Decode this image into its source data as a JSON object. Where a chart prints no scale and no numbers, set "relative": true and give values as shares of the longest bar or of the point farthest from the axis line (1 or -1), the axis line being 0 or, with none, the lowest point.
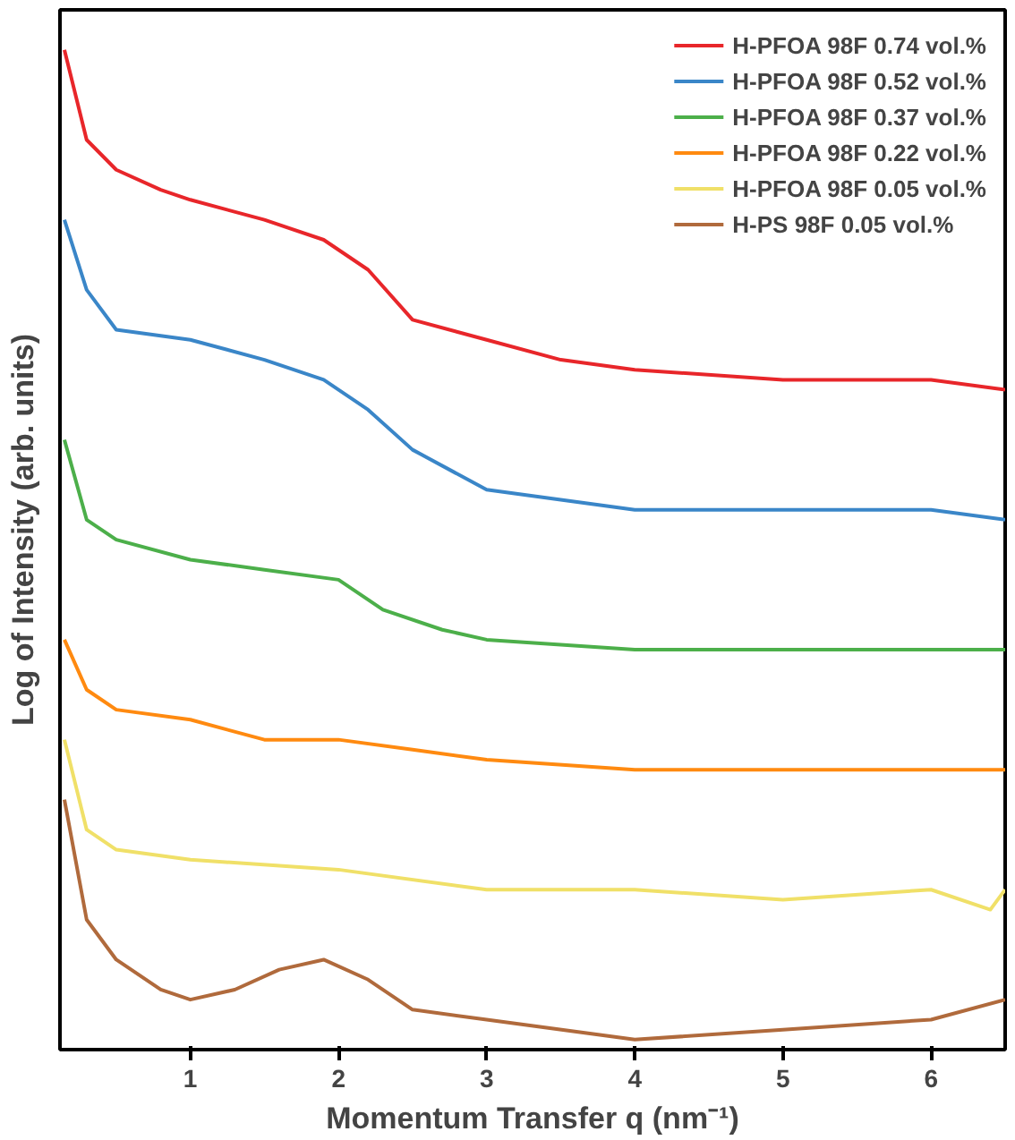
{
  "chart_data": {
    "type": "line",
    "relative": true,
    "xlabel": "Momentum Transfer q (nm⁻¹)",
    "ylabel": "Log of Intensity (arb. units)",
    "xlim": [
      0.12,
      6.5
    ],
    "xticks": [
      1,
      2,
      3,
      4,
      5,
      6
    ],
    "grid": false,
    "legend": "top right",
    "marker": "none",
    "line_style": "solid",
    "series": [
      {
        "name": "H-PFOA 98F 0.74 vol.%",
        "color": "#e8262a",
        "x": [
          0.15,
          0.3,
          0.5,
          0.8,
          1,
          1.5,
          1.9,
          2.2,
          2.5,
          3,
          3.5,
          4,
          5,
          6,
          6.5
        ],
        "values": [
          1.0,
          0.91,
          0.88,
          0.86,
          0.85,
          0.83,
          0.81,
          0.78,
          0.73,
          0.71,
          0.69,
          0.68,
          0.67,
          0.67,
          0.66
        ]
      },
      {
        "name": "H-PFOA 98F 0.52 vol.%",
        "color": "#3a86c8",
        "x": [
          0.15,
          0.3,
          0.5,
          1,
          1.5,
          1.9,
          2.2,
          2.5,
          3,
          3.5,
          4,
          5,
          6,
          6.5
        ],
        "values": [
          0.83,
          0.76,
          0.72,
          0.71,
          0.69,
          0.67,
          0.64,
          0.6,
          0.56,
          0.55,
          0.54,
          0.54,
          0.54,
          0.53
        ]
      },
      {
        "name": "H-PFOA 98F 0.37 vol.%",
        "color": "#4caf4a",
        "x": [
          0.15,
          0.3,
          0.5,
          1,
          1.5,
          2,
          2.3,
          2.7,
          3,
          4,
          5,
          6,
          6.5
        ],
        "values": [
          0.61,
          0.53,
          0.51,
          0.49,
          0.48,
          0.47,
          0.44,
          0.42,
          0.41,
          0.4,
          0.4,
          0.4,
          0.4
        ]
      },
      {
        "name": "H-PFOA 98F 0.22 vol.%",
        "color": "#ff8a10",
        "x": [
          0.15,
          0.3,
          0.5,
          1,
          1.5,
          2,
          2.5,
          3,
          4,
          5,
          6,
          6.5
        ],
        "values": [
          0.41,
          0.36,
          0.34,
          0.33,
          0.31,
          0.31,
          0.3,
          0.29,
          0.28,
          0.28,
          0.28,
          0.28
        ]
      },
      {
        "name": "H-PFOA 98F 0.05 vol.%",
        "color": "#f0e068",
        "x": [
          0.15,
          0.3,
          0.5,
          1,
          2,
          3,
          4,
          5,
          6,
          6.4,
          6.5
        ],
        "values": [
          0.31,
          0.22,
          0.2,
          0.19,
          0.18,
          0.16,
          0.16,
          0.15,
          0.16,
          0.14,
          0.16
        ]
      },
      {
        "name": "H-PS 98F 0.05 vol.%",
        "color": "#b06a3c",
        "x": [
          0.15,
          0.3,
          0.5,
          0.8,
          1,
          1.3,
          1.6,
          1.9,
          2.2,
          2.5,
          3,
          4,
          5,
          6,
          6.5
        ],
        "values": [
          0.25,
          0.13,
          0.09,
          0.06,
          0.05,
          0.06,
          0.08,
          0.09,
          0.07,
          0.04,
          0.03,
          0.01,
          0.02,
          0.03,
          0.05
        ]
      }
    ]
  }
}
